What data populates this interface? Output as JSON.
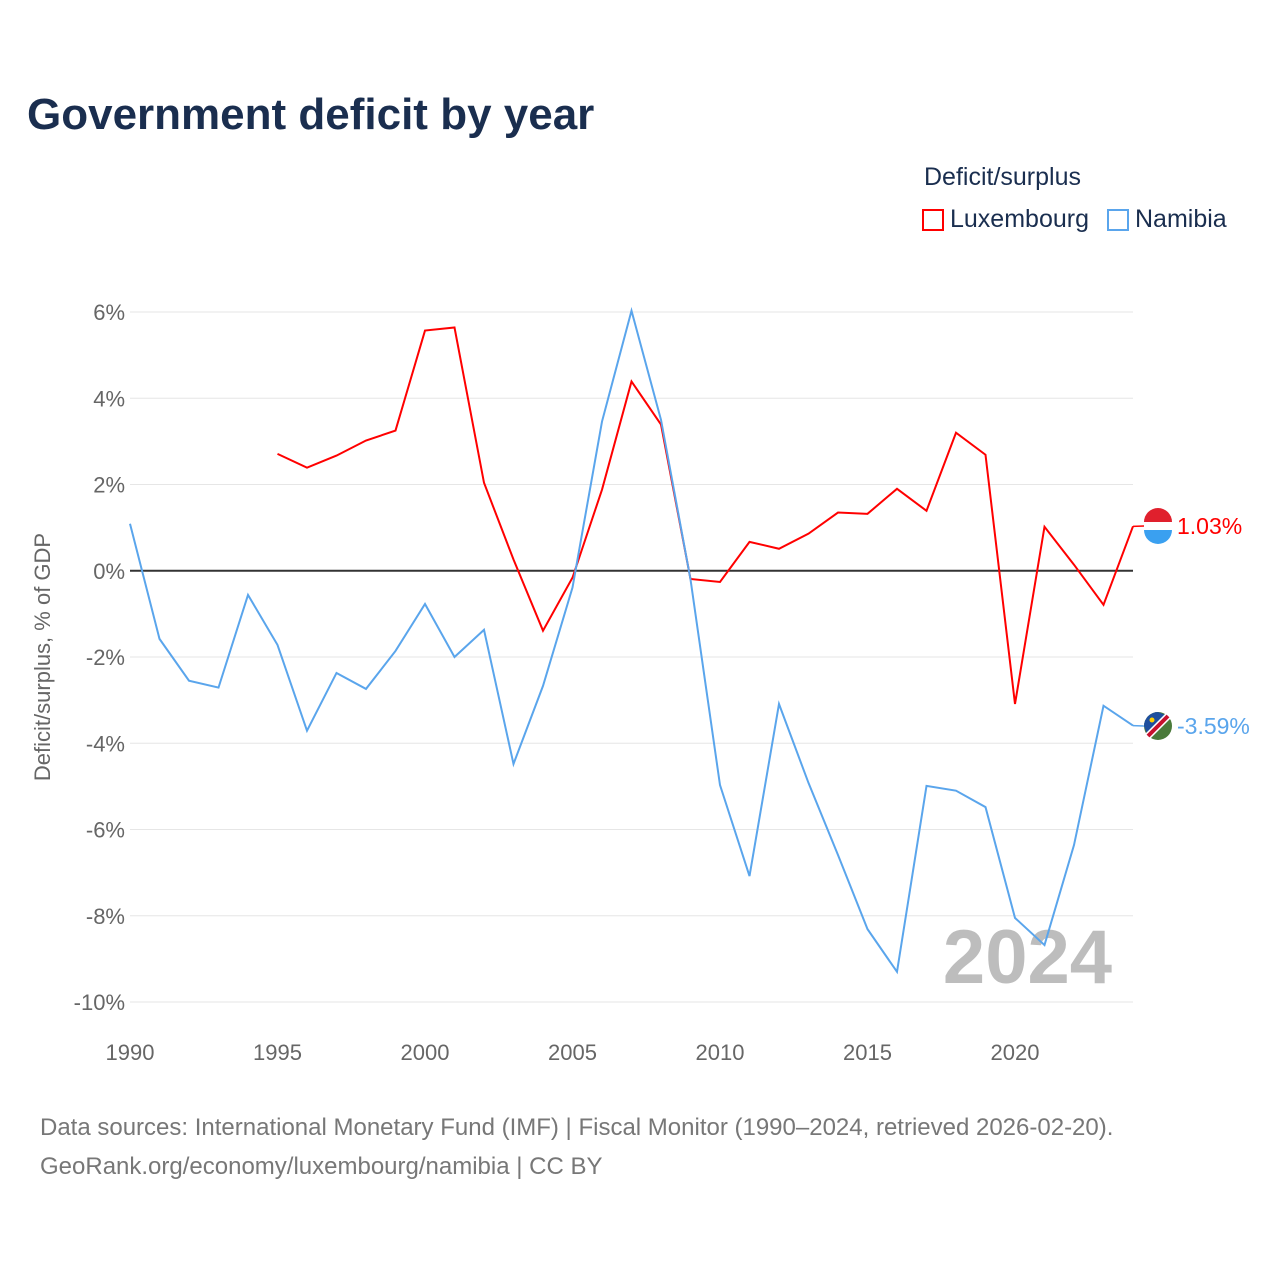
{
  "title": "Government deficit by year",
  "legend": {
    "title": "Deficit/surplus",
    "items": [
      "Luxembourg",
      "Namibia"
    ]
  },
  "footer": {
    "line1": "Data sources: International Monetary Fund (IMF) | Fiscal Monitor (1990–2024, retrieved 2026-02-20).",
    "line2": "GeoRank.org/economy/luxembourg/namibia | CC BY"
  },
  "chart_data": {
    "type": "line",
    "title": "Government deficit by year",
    "xlabel": "",
    "ylabel": "Deficit/surplus, % of GDP",
    "xlim": [
      1990,
      2024
    ],
    "ylim": [
      -10,
      6
    ],
    "xticks": [
      1990,
      1995,
      2000,
      2005,
      2010,
      2015,
      2020
    ],
    "yticks": [
      6,
      4,
      2,
      0,
      -2,
      -4,
      -6,
      -8,
      -10
    ],
    "ytick_labels": [
      "6%",
      "4%",
      "2%",
      "0%",
      "-2%",
      "-4%",
      "-6%",
      "-8%",
      "-10%"
    ],
    "watermark_year": "2024",
    "series": [
      {
        "name": "Luxembourg",
        "color": "#ff0000",
        "end_label": "1.03%",
        "x": [
          1995,
          1996,
          1997,
          1998,
          1999,
          2000,
          2001,
          2002,
          2003,
          2004,
          2005,
          2006,
          2007,
          2008,
          2009,
          2010,
          2011,
          2012,
          2013,
          2014,
          2015,
          2016,
          2017,
          2018,
          2019,
          2020,
          2021,
          2022,
          2023,
          2024
        ],
        "values": [
          2.71,
          2.39,
          2.67,
          3.02,
          3.25,
          5.57,
          5.64,
          2.04,
          0.26,
          -1.39,
          -0.16,
          1.88,
          4.39,
          3.39,
          -0.19,
          -0.26,
          0.67,
          0.51,
          0.86,
          1.35,
          1.32,
          1.9,
          1.39,
          3.2,
          2.69,
          -3.09,
          1.02,
          0.14,
          -0.79,
          1.03
        ]
      },
      {
        "name": "Namibia",
        "color": "#5aa5ec",
        "end_label": "-3.59%",
        "x": [
          1990,
          1991,
          1992,
          1993,
          1994,
          1995,
          1996,
          1997,
          1998,
          1999,
          2000,
          2001,
          2002,
          2003,
          2004,
          2005,
          2006,
          2007,
          2008,
          2009,
          2010,
          2011,
          2012,
          2013,
          2014,
          2015,
          2016,
          2017,
          2018,
          2019,
          2020,
          2021,
          2022,
          2023,
          2024
        ],
        "values": [
          1.09,
          -1.58,
          -2.55,
          -2.71,
          -0.56,
          -1.72,
          -3.71,
          -2.37,
          -2.74,
          -1.86,
          -0.77,
          -2.0,
          -1.37,
          -4.48,
          -2.67,
          -0.39,
          3.46,
          6.03,
          3.5,
          -0.2,
          -4.97,
          -7.08,
          -3.09,
          -4.92,
          -6.59,
          -8.31,
          -9.3,
          -4.99,
          -5.1,
          -5.48,
          -8.05,
          -8.68,
          -6.36,
          -3.13,
          -3.59
        ]
      }
    ]
  }
}
